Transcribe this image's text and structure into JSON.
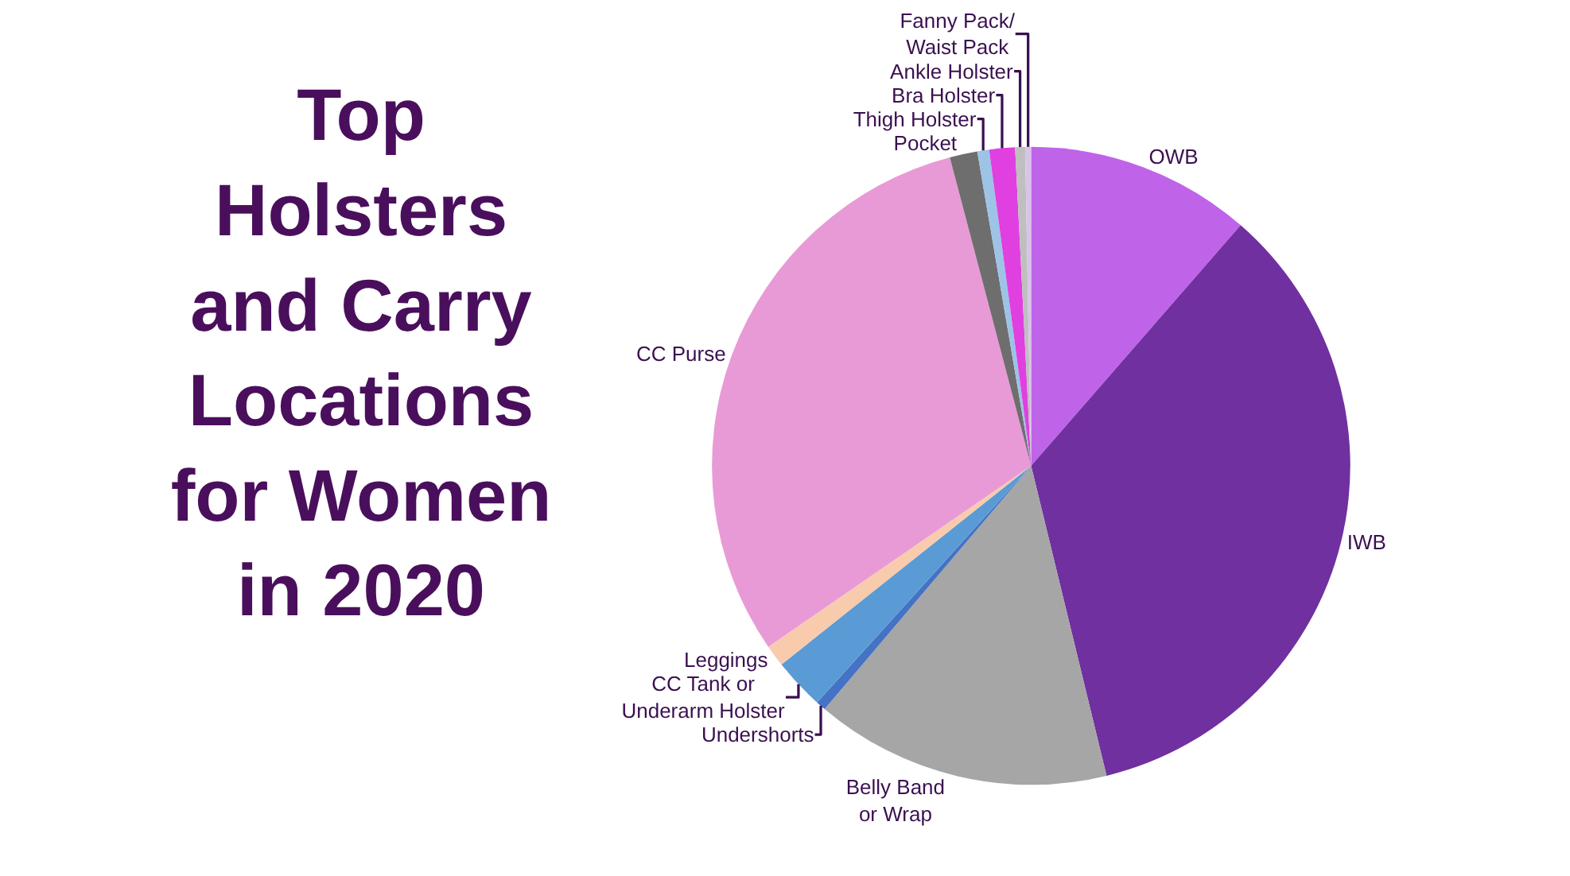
{
  "chart_data": {
    "type": "pie",
    "title": "Top\nHolsters\nand Carry\nLocations\nfor Women\nin 2020",
    "categories": [
      "OWB",
      "IWB",
      "Belly Band\nor Wrap",
      "Undershorts",
      "CC Tank or\nUnderarm Holster",
      "Leggings",
      "CC Purse",
      "Pocket",
      "Thigh Holster",
      "Bra Holster",
      "Ankle Holster",
      "Fanny Pack/\nWaist Pack"
    ],
    "values": [
      11.4,
      34.8,
      15,
      0.5,
      2.6,
      1.1,
      30.5,
      1.4,
      0.6,
      1.3,
      0.5,
      0.3
    ],
    "colors": [
      "#bf64e8",
      "#7030a0",
      "#a6a6a6",
      "#4472c4",
      "#5b9bd5",
      "#f8cbad",
      "#e89ad6",
      "#6e6e6e",
      "#9dc3e6",
      "#e040e0",
      "#bfbfbf",
      "#d9c3e9"
    ],
    "legend": false
  }
}
